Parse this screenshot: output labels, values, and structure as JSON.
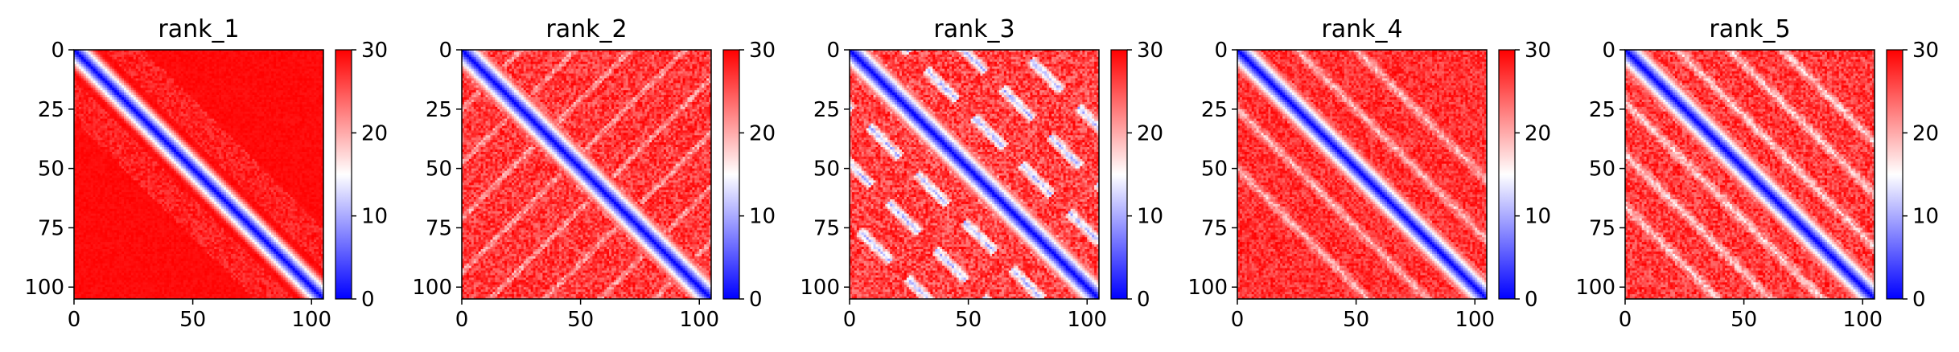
{
  "chart_data": [
    {
      "type": "heatmap",
      "title": "rank_1",
      "xticks": [
        "0",
        "50",
        "100"
      ],
      "yticks": [
        "0",
        "25",
        "50",
        "75",
        "100"
      ],
      "colorbar_ticks": [
        "0",
        "10",
        "20",
        "30"
      ],
      "colorbar_range": [
        0,
        30
      ],
      "colormap": [
        "#0000ff",
        "#ffffff",
        "#ff0000"
      ],
      "matrix_size": 105,
      "pattern": "diagonal band near 0, off-diagonal mostly saturated red (~30)"
    },
    {
      "type": "heatmap",
      "title": "rank_2",
      "xticks": [
        "0",
        "50",
        "100"
      ],
      "yticks": [
        "0",
        "25",
        "50",
        "75",
        "100"
      ],
      "colorbar_ticks": [
        "0",
        "10",
        "20",
        "30"
      ],
      "colorbar_range": [
        0,
        30
      ],
      "colormap": [
        "#0000ff",
        "#ffffff",
        "#ff0000"
      ],
      "matrix_size": 105,
      "pattern": "diagonal band near 0, off-diagonal red with light patches (~22-30)"
    },
    {
      "type": "heatmap",
      "title": "rank_3",
      "xticks": [
        "0",
        "50",
        "100"
      ],
      "yticks": [
        "0",
        "25",
        "50",
        "75",
        "100"
      ],
      "colorbar_ticks": [
        "0",
        "10",
        "20",
        "30"
      ],
      "colorbar_range": [
        0,
        30
      ],
      "colormap": [
        "#0000ff",
        "#ffffff",
        "#ff0000"
      ],
      "matrix_size": 105,
      "pattern": "diagonal band near 0 plus parallel low-distance (blue/white) off-diagonal streaks"
    },
    {
      "type": "heatmap",
      "title": "rank_4",
      "xticks": [
        "0",
        "50",
        "100"
      ],
      "yticks": [
        "0",
        "25",
        "50",
        "75",
        "100"
      ],
      "colorbar_ticks": [
        "0",
        "10",
        "20",
        "30"
      ],
      "colorbar_range": [
        0,
        30
      ],
      "colormap": [
        "#0000ff",
        "#ffffff",
        "#ff0000"
      ],
      "matrix_size": 105,
      "pattern": "diagonal band near 0, faint lighter parallel streaks, red elsewhere"
    },
    {
      "type": "heatmap",
      "title": "rank_5",
      "xticks": [
        "0",
        "50",
        "100"
      ],
      "yticks": [
        "0",
        "25",
        "50",
        "75",
        "100"
      ],
      "colorbar_ticks": [
        "0",
        "10",
        "20",
        "30"
      ],
      "colorbar_range": [
        0,
        30
      ],
      "colormap": [
        "#0000ff",
        "#ffffff",
        "#ff0000"
      ],
      "matrix_size": 105,
      "pattern": "diagonal band near 0, lighter parallel streaks, red elsewhere"
    }
  ]
}
